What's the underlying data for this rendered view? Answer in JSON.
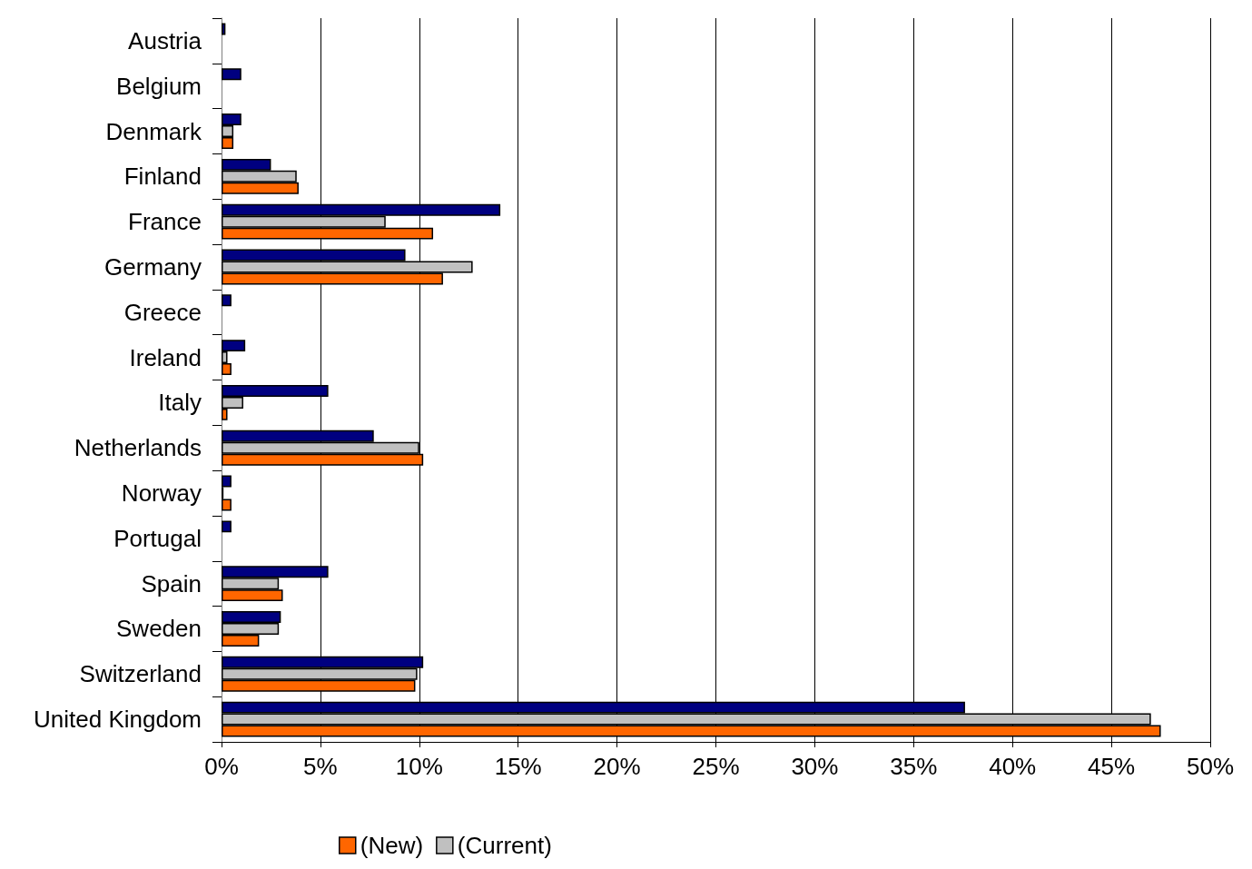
{
  "chart_data": {
    "type": "bar",
    "orientation": "horizontal",
    "categories": [
      "Austria",
      "Belgium",
      "Denmark",
      "Finland",
      "France",
      "Germany",
      "Greece",
      "Ireland",
      "Italy",
      "Netherlands",
      "Norway",
      "Portugal",
      "Spain",
      "Sweden",
      "Switzerland",
      "United Kingdom"
    ],
    "series": [
      {
        "name": "(New)",
        "color": "#ff6600",
        "values": [
          null,
          null,
          0.6,
          3.9,
          10.7,
          11.2,
          null,
          0.5,
          0.3,
          10.2,
          0.5,
          null,
          3.1,
          1.9,
          9.8,
          47.5
        ]
      },
      {
        "name": "(Current)",
        "color": "#c0c0c0",
        "values": [
          null,
          null,
          0.6,
          3.8,
          8.3,
          12.7,
          null,
          0.3,
          1.1,
          10.0,
          0.1,
          null,
          2.9,
          2.9,
          9.9,
          47.0
        ]
      },
      {
        "color": "#000080",
        "values": [
          0.2,
          1.0,
          1.0,
          2.5,
          14.1,
          9.3,
          0.5,
          1.2,
          5.4,
          7.7,
          0.5,
          0.5,
          5.4,
          3.0,
          10.2,
          37.6
        ]
      }
    ],
    "xlim": [
      0,
      50
    ],
    "xticks": [
      {
        "value": 0,
        "label": "0%"
      },
      {
        "value": 5,
        "label": "5%"
      },
      {
        "value": 10,
        "label": "10%"
      },
      {
        "value": 15,
        "label": "15%"
      },
      {
        "value": 20,
        "label": "20%"
      },
      {
        "value": 25,
        "label": "25%"
      },
      {
        "value": 30,
        "label": "30%"
      },
      {
        "value": 35,
        "label": "35%"
      },
      {
        "value": 40,
        "label": "40%"
      },
      {
        "value": 45,
        "label": "45%"
      },
      {
        "value": 50,
        "label": "50%"
      }
    ],
    "grid": "x",
    "legend": "bottom"
  }
}
